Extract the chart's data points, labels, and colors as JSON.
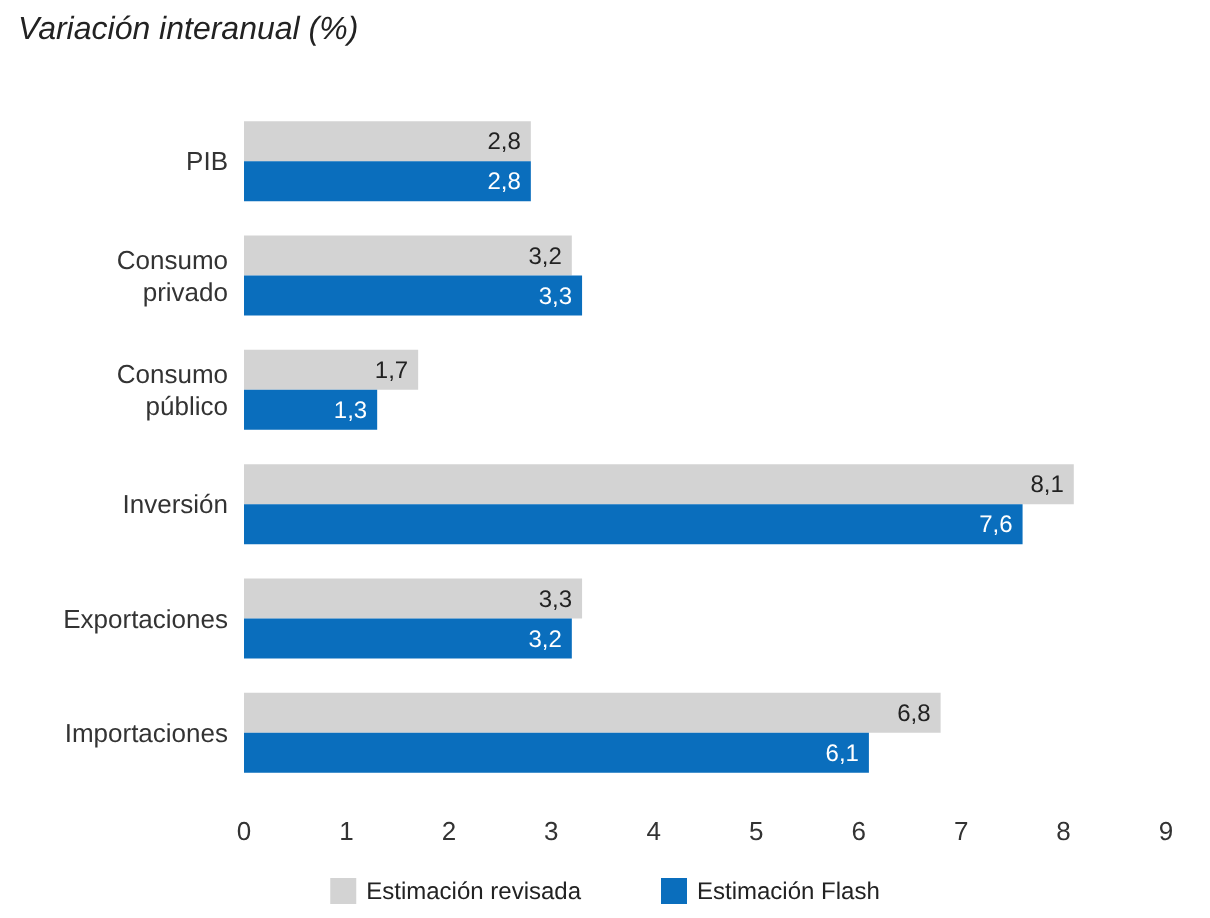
{
  "chart_data": {
    "type": "bar",
    "orientation": "horizontal",
    "subtitle": "Variación interanual (%)",
    "categories": [
      "PIB",
      "Consumo\nprivado",
      "Consumo\npúblico",
      "Inversión",
      "Exportaciones",
      "Importaciones"
    ],
    "series": [
      {
        "name": "Estimación revisada",
        "color": "#d3d3d3",
        "values": [
          2.8,
          3.2,
          1.7,
          8.1,
          3.3,
          6.8
        ],
        "value_labels": [
          "2,8",
          "3,2",
          "1,7",
          "8,1",
          "3,3",
          "6,8"
        ]
      },
      {
        "name": "Estimación Flash",
        "color": "#0a6ebd",
        "values": [
          2.8,
          3.3,
          1.3,
          7.6,
          3.2,
          6.1
        ],
        "value_labels": [
          "2,8",
          "3,3",
          "1,3",
          "7,6",
          "3,2",
          "6,1"
        ]
      }
    ],
    "xlim": [
      0,
      9
    ],
    "xticks": [
      0,
      1,
      2,
      3,
      4,
      5,
      6,
      7,
      8,
      9
    ],
    "grid": false,
    "legend": "bottom"
  }
}
